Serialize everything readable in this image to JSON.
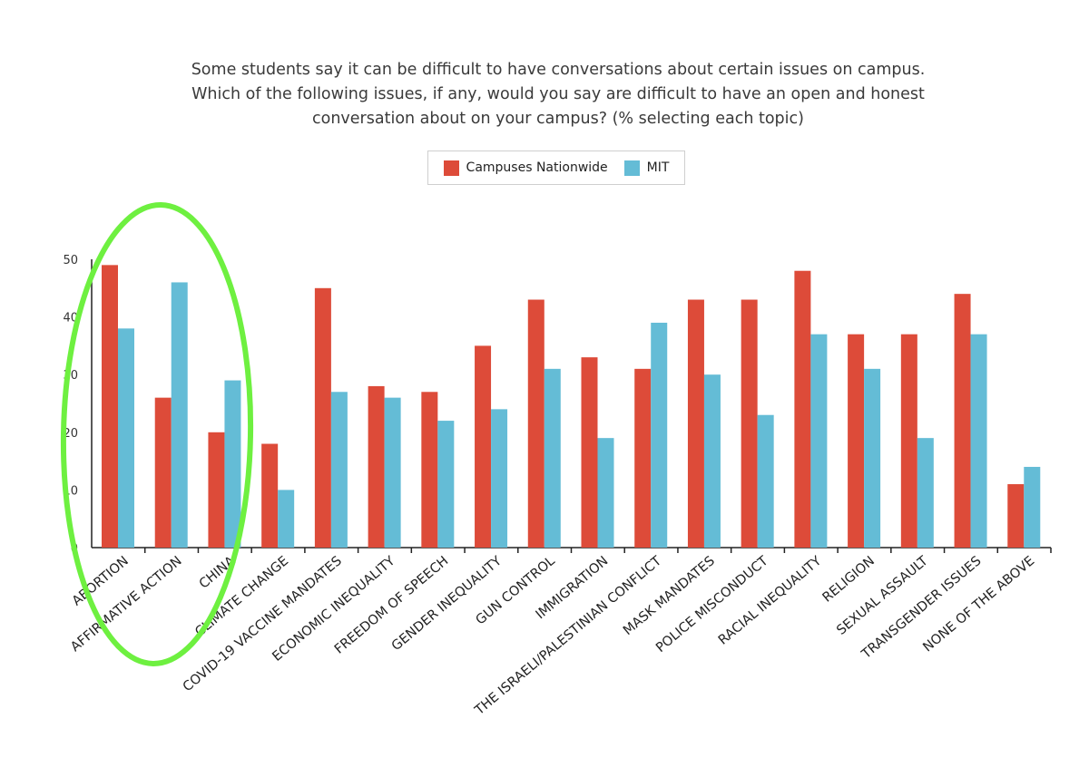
{
  "chart_data": {
    "type": "bar",
    "title_lines": [
      "Some students say it can be difficult to have conversations about certain issues on campus.",
      "Which of the following issues, if any, would you say are difficult to have an open and honest",
      "conversation about on your campus? (% selecting each topic)"
    ],
    "categories": [
      "ABORTION",
      "AFFIRMATIVE ACTION",
      "CHINA",
      "CLIMATE CHANGE",
      "COVID-19 VACCINE MANDATES",
      "ECONOMIC INEQUALITY",
      "FREEDOM OF SPEECH",
      "GENDER INEQUALITY",
      "GUN CONTROL",
      "IMMIGRATION",
      "THE ISRAELI/PALESTINIAN CONFLICT",
      "MASK MANDATES",
      "POLICE MISCONDUCT",
      "RACIAL INEQUALITY",
      "RELIGION",
      "SEXUAL ASSAULT",
      "TRANSGENDER ISSUES",
      "NONE OF THE ABOVE"
    ],
    "series": [
      {
        "name": "Campuses Nationwide",
        "color": "#dd4b39",
        "values": [
          49,
          26,
          20,
          18,
          45,
          28,
          27,
          35,
          43,
          33,
          31,
          43,
          43,
          48,
          37,
          37,
          44,
          11
        ]
      },
      {
        "name": "MIT",
        "color": "#64bcd6",
        "values": [
          38,
          46,
          29,
          10,
          27,
          26,
          22,
          24,
          31,
          19,
          39,
          30,
          23,
          37,
          31,
          19,
          37,
          14
        ]
      }
    ],
    "ylim": [
      0,
      50
    ],
    "yticks": [
      0,
      10,
      20,
      30,
      40,
      50
    ],
    "ytick_labels": [
      "0",
      "10",
      "20",
      "30",
      "40",
      "50"
    ],
    "xlabel": "",
    "ylabel": "",
    "legend_position": "top-center",
    "annotation": "green-ellipse-highlight",
    "highlight_color": "#6ef040"
  }
}
